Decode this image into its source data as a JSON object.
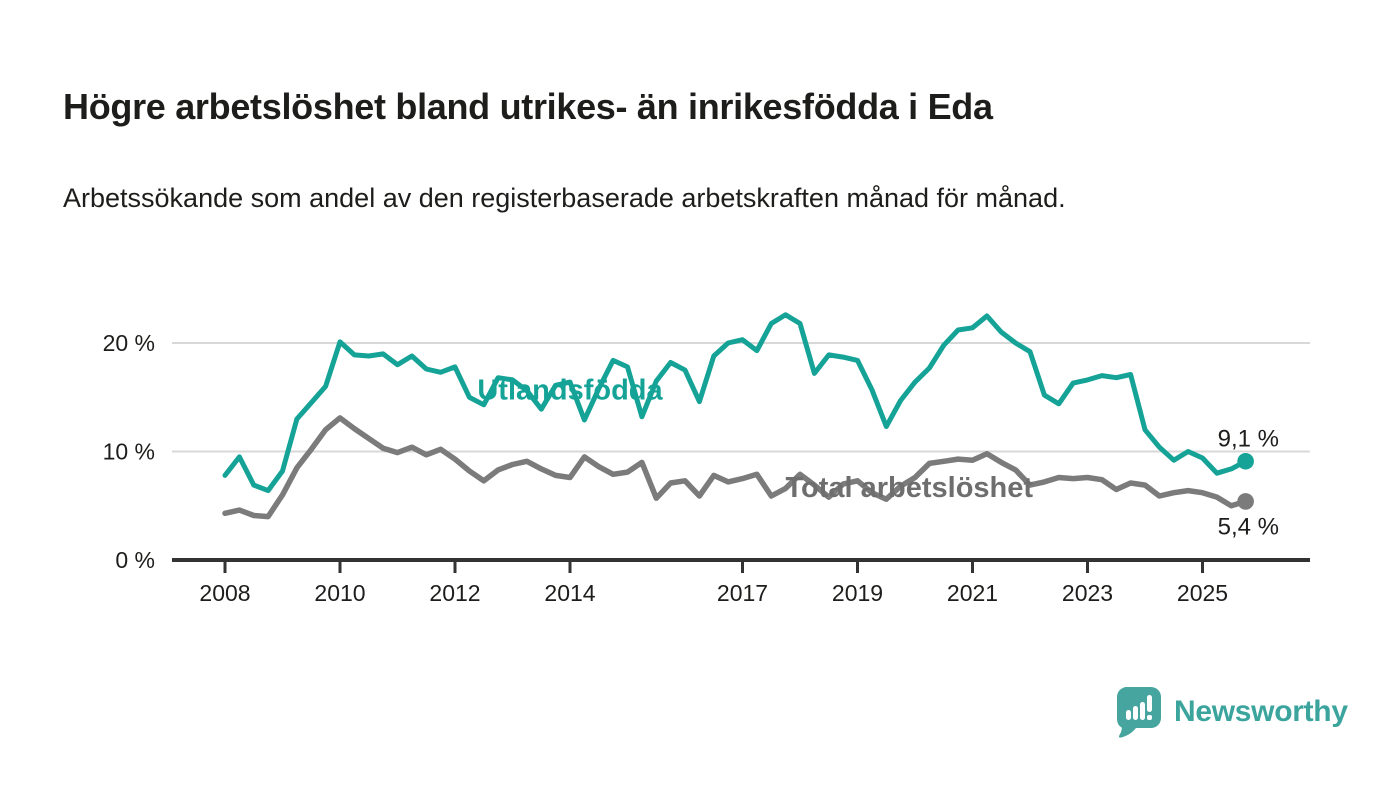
{
  "header": {
    "title": "Högre arbetslöshet bland utrikes- än inrikesfödda i Eda",
    "subtitle": "Arbetssökande som andel av den registerbaserade arbetskraften månad för månad."
  },
  "footer": {
    "brand": "Newsworthy",
    "brand_color": "#3ba49d",
    "logo_icon": "speech-bubble-bar-chart"
  },
  "chart_data": {
    "type": "line",
    "title": "Högre arbetslöshet bland utrikes- än inrikesfödda i Eda",
    "xlabel": "",
    "ylabel": "",
    "x_unit": "year (monthly series)",
    "y_unit": "%",
    "x_start": 2008.0,
    "x_step": 0.25,
    "xlim": [
      2007.9,
      2026.3
    ],
    "ylim": [
      0,
      23
    ],
    "grid": true,
    "legend_position": "inline-labels",
    "x_ticks": [
      {
        "value": 2008,
        "label": "2008"
      },
      {
        "value": 2010,
        "label": "2010"
      },
      {
        "value": 2012,
        "label": "2012"
      },
      {
        "value": 2014,
        "label": "2014"
      },
      {
        "value": 2017,
        "label": "2017"
      },
      {
        "value": 2019,
        "label": "2019"
      },
      {
        "value": 2021,
        "label": "2021"
      },
      {
        "value": 2023,
        "label": "2023"
      },
      {
        "value": 2025,
        "label": "2025"
      }
    ],
    "y_ticks": [
      {
        "value": 0,
        "label": "0 %"
      },
      {
        "value": 10,
        "label": "10 %"
      },
      {
        "value": 20,
        "label": "20 %"
      }
    ],
    "colors": {
      "grid": "#d8d8d8",
      "axis": "#333333",
      "text": "#1d1d1b"
    },
    "series": [
      {
        "id": "utlandsfodda",
        "name": "Utlandsfödda",
        "color": "#14a396",
        "line_width": 5,
        "end_label": "9,1 %",
        "end_value": 9.1,
        "label_pos": {
          "year": 2014.0,
          "value": 14.8
        },
        "values": [
          7.8,
          9.5,
          6.9,
          6.4,
          8.2,
          13.0,
          14.5,
          16.0,
          20.1,
          18.9,
          18.8,
          19.0,
          18.0,
          18.8,
          17.6,
          17.3,
          17.8,
          15.0,
          14.3,
          16.8,
          16.6,
          15.6,
          13.9,
          16.1,
          16.4,
          12.9,
          15.8,
          18.4,
          17.8,
          13.2,
          16.5,
          18.2,
          17.5,
          14.6,
          18.8,
          20.0,
          20.3,
          19.3,
          21.8,
          22.6,
          21.8,
          17.2,
          18.9,
          18.7,
          18.4,
          15.7,
          12.3,
          14.7,
          16.4,
          17.7,
          19.8,
          21.2,
          21.4,
          22.5,
          21.0,
          20.0,
          19.2,
          15.2,
          14.4,
          16.3,
          16.6,
          17.0,
          16.8,
          17.1,
          12.0,
          10.4,
          9.2,
          10.0,
          9.4,
          8.0,
          8.4,
          9.1
        ]
      },
      {
        "id": "total-arbetsloshet",
        "name": "Total arbetslöshet",
        "color": "#7b7b7b",
        "label_color": "#6e6e6e",
        "line_width": 5.5,
        "end_label": "5,4 %",
        "end_value": 5.4,
        "label_pos": {
          "year": 2019.9,
          "value": 5.8
        },
        "values": [
          4.3,
          4.6,
          4.1,
          4.0,
          6.0,
          8.5,
          10.2,
          12.0,
          13.1,
          12.1,
          11.2,
          10.3,
          9.9,
          10.4,
          9.7,
          10.2,
          9.3,
          8.2,
          7.3,
          8.3,
          8.8,
          9.1,
          8.4,
          7.8,
          7.6,
          9.5,
          8.6,
          7.9,
          8.1,
          9.0,
          5.7,
          7.1,
          7.3,
          5.9,
          7.8,
          7.2,
          7.5,
          7.9,
          5.9,
          6.6,
          7.9,
          6.9,
          5.8,
          7.0,
          7.3,
          6.2,
          5.6,
          6.8,
          7.6,
          8.9,
          9.1,
          9.3,
          9.2,
          9.8,
          9.0,
          8.3,
          6.9,
          7.2,
          7.6,
          7.5,
          7.6,
          7.4,
          6.5,
          7.1,
          6.9,
          5.9,
          6.2,
          6.4,
          6.2,
          5.8,
          5.0,
          5.4
        ]
      }
    ]
  }
}
